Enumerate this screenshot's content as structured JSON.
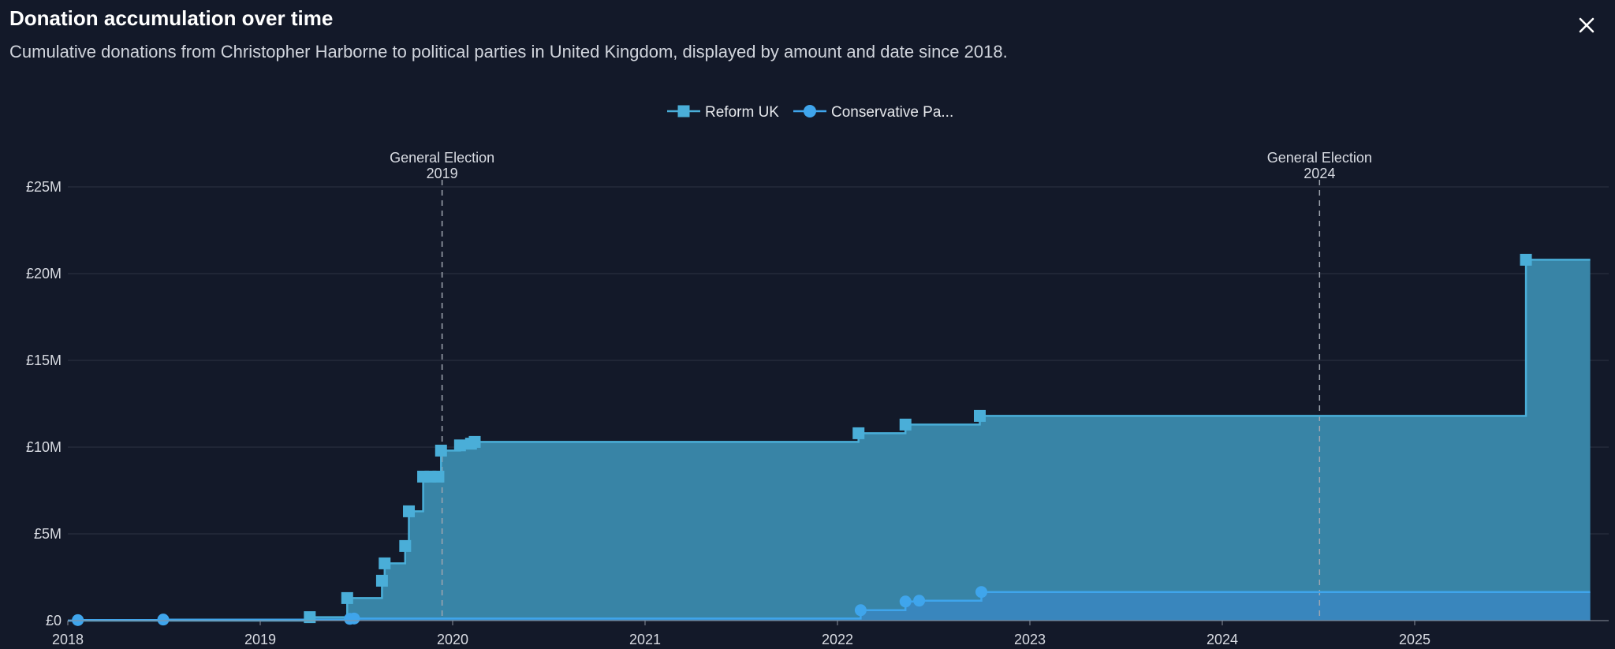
{
  "header": {
    "title": "Donation accumulation over time",
    "subtitle": "Cumulative donations from Christopher Harborne to political parties in United Kingdom, displayed by amount and date since 2018.",
    "close_icon": "close-icon"
  },
  "colors": {
    "background": "#131929",
    "reform": "#4aaed8",
    "reform_fill": "#3a8aad",
    "conservative": "#3fa5ec",
    "conservative_fill": "#3a86c0",
    "grid": "#2c3344",
    "annotation": "#a0a6b0"
  },
  "chart_data": {
    "type": "area",
    "title": "",
    "xlabel": "",
    "ylabel": "",
    "x_ticks": [
      "2018",
      "2019",
      "2020",
      "2021",
      "2022",
      "2023",
      "2024",
      "2025"
    ],
    "y_ticks": [
      "£0",
      "£5M",
      "£10M",
      "£15M",
      "£20M",
      "£25M"
    ],
    "ylim": [
      0,
      25000000
    ],
    "xlim": [
      "2018-01-01",
      "2025-12-01"
    ],
    "step": true,
    "grid": true,
    "legend_position": "top",
    "legend": [
      "Reform UK",
      "Conservative Pa..."
    ],
    "annotations": [
      {
        "line1": "General Election",
        "line2": "2019",
        "date": "2019-12-12"
      },
      {
        "line1": "General Election",
        "line2": "2024",
        "date": "2024-07-04"
      }
    ],
    "series": [
      {
        "name": "Reform UK",
        "marker": "square",
        "points": [
          {
            "date": "2019-04-05",
            "value": 200000
          },
          {
            "date": "2019-06-15",
            "value": 1300000
          },
          {
            "date": "2019-08-20",
            "value": 2300000
          },
          {
            "date": "2019-08-25",
            "value": 3300000
          },
          {
            "date": "2019-10-03",
            "value": 4300000
          },
          {
            "date": "2019-10-10",
            "value": 6300000
          },
          {
            "date": "2019-11-06",
            "value": 8300000
          },
          {
            "date": "2019-11-20",
            "value": 8300000
          },
          {
            "date": "2019-12-05",
            "value": 8300000
          },
          {
            "date": "2019-12-10",
            "value": 9800000
          },
          {
            "date": "2020-01-15",
            "value": 10100000
          },
          {
            "date": "2020-02-05",
            "value": 10200000
          },
          {
            "date": "2020-02-12",
            "value": 10300000
          },
          {
            "date": "2022-02-10",
            "value": 10800000
          },
          {
            "date": "2022-05-10",
            "value": 11300000
          },
          {
            "date": "2022-09-28",
            "value": 11800000
          },
          {
            "date": "2025-07-31",
            "value": 20800000
          }
        ],
        "end_date": "2025-11-30"
      },
      {
        "name": "Conservative Pa...",
        "marker": "circle",
        "points": [
          {
            "date": "2018-01-20",
            "value": 30000
          },
          {
            "date": "2018-07-01",
            "value": 60000
          },
          {
            "date": "2019-06-20",
            "value": 100000
          },
          {
            "date": "2019-06-28",
            "value": 120000
          },
          {
            "date": "2022-02-14",
            "value": 600000
          },
          {
            "date": "2022-05-10",
            "value": 1100000
          },
          {
            "date": "2022-06-05",
            "value": 1150000
          },
          {
            "date": "2022-10-01",
            "value": 1650000
          }
        ],
        "end_date": "2025-11-30"
      }
    ]
  }
}
